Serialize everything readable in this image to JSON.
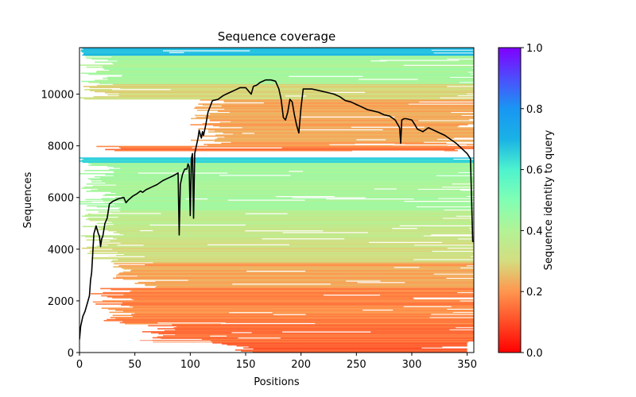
{
  "chart_data": {
    "type": "heatmap",
    "title": "Sequence coverage",
    "xlabel": "Positions",
    "ylabel": "Sequences",
    "xlim": [
      0,
      356
    ],
    "ylim": [
      0,
      11800
    ],
    "x_ticks": [
      0,
      50,
      100,
      150,
      200,
      250,
      300,
      350
    ],
    "x_tick_labels": [
      "0",
      "50",
      "100",
      "150",
      "200",
      "250",
      "300",
      "350"
    ],
    "y_ticks": [
      0,
      2000,
      4000,
      6000,
      8000,
      10000
    ],
    "y_tick_labels": [
      "0",
      "2000",
      "4000",
      "6000",
      "8000",
      "10000"
    ],
    "colorbar": {
      "label": "Sequence identity to query",
      "range": [
        0.0,
        1.0
      ],
      "ticks": [
        0.0,
        0.2,
        0.4,
        0.6,
        0.8,
        1.0
      ],
      "tick_labels": [
        "0.0",
        "0.2",
        "0.4",
        "0.6",
        "0.8",
        "1.0"
      ],
      "colormap": "rainbow_r"
    },
    "coverage_bands": [
      {
        "y_from": 0,
        "y_to": 400,
        "identity": 0.12,
        "x_start": 130,
        "x_end": 350
      },
      {
        "y_from": 400,
        "y_to": 1100,
        "identity": 0.15,
        "x_start": 60,
        "x_end": 356
      },
      {
        "y_from": 1100,
        "y_to": 2500,
        "identity": 0.18,
        "x_start": 20,
        "x_end": 356
      },
      {
        "y_from": 2500,
        "y_to": 3500,
        "identity": 0.22,
        "x_start": 40,
        "x_end": 356
      },
      {
        "y_from": 3500,
        "y_to": 4500,
        "identity": 0.31,
        "x_start": 12,
        "x_end": 356
      },
      {
        "y_from": 4500,
        "y_to": 5500,
        "identity": 0.36,
        "x_start": 10,
        "x_end": 356
      },
      {
        "y_from": 5500,
        "y_to": 7350,
        "identity": 0.42,
        "x_start": 8,
        "x_end": 356
      },
      {
        "y_from": 7350,
        "y_to": 7550,
        "identity": 0.65,
        "x_start": 0,
        "x_end": 356
      },
      {
        "y_from": 7800,
        "y_to": 8000,
        "identity": 0.16,
        "x_start": 8,
        "x_end": 356
      },
      {
        "y_from": 8000,
        "y_to": 9800,
        "identity": 0.22,
        "x_start": 110,
        "x_end": 356
      },
      {
        "y_from": 9800,
        "y_to": 10400,
        "identity": 0.3,
        "x_start": 8,
        "x_end": 356
      },
      {
        "y_from": 10400,
        "y_to": 11500,
        "identity": 0.42,
        "x_start": 10,
        "x_end": 356
      },
      {
        "y_from": 11500,
        "y_to": 11800,
        "identity": 0.7,
        "x_start": 0,
        "x_end": 356
      }
    ],
    "coverage_line": {
      "x": [
        0,
        1,
        3,
        5,
        7,
        9,
        10,
        11,
        13,
        15,
        17,
        18,
        19,
        20,
        21,
        23,
        25,
        27,
        30,
        35,
        40,
        42,
        44,
        48,
        52,
        55,
        57,
        60,
        65,
        70,
        75,
        80,
        85,
        89,
        90,
        91,
        93,
        95,
        97,
        98,
        99,
        100,
        101,
        102,
        103,
        104,
        105,
        107,
        108,
        110,
        111,
        112,
        114,
        116,
        120,
        125,
        130,
        135,
        140,
        145,
        150,
        153,
        155,
        157,
        160,
        163,
        168,
        173,
        177,
        180,
        182,
        184,
        186,
        188,
        190,
        192,
        194,
        196,
        198,
        200,
        202,
        205,
        210,
        215,
        220,
        225,
        230,
        235,
        240,
        245,
        250,
        255,
        260,
        265,
        270,
        275,
        280,
        285,
        289,
        290,
        291,
        293,
        295,
        300,
        303,
        305,
        310,
        315,
        320,
        325,
        330,
        335,
        340,
        345,
        350,
        353,
        355,
        356
      ],
      "y": [
        500,
        1000,
        1400,
        1600,
        1900,
        2200,
        2800,
        3100,
        4600,
        4900,
        4600,
        4500,
        4100,
        4400,
        4500,
        5000,
        5200,
        5750,
        5850,
        5950,
        6000,
        5800,
        5900,
        6050,
        6150,
        6250,
        6200,
        6300,
        6400,
        6500,
        6650,
        6750,
        6850,
        6950,
        4550,
        6500,
        6900,
        7100,
        7100,
        7300,
        7200,
        5300,
        7500,
        7700,
        5200,
        7700,
        7900,
        8300,
        8600,
        8300,
        8550,
        8400,
        8800,
        9300,
        9750,
        9800,
        9950,
        10050,
        10150,
        10250,
        10250,
        10100,
        10000,
        10300,
        10350,
        10450,
        10550,
        10550,
        10500,
        10200,
        9800,
        9100,
        9000,
        9300,
        9800,
        9700,
        9200,
        8800,
        8500,
        9500,
        10200,
        10200,
        10200,
        10150,
        10100,
        10050,
        10000,
        9900,
        9750,
        9700,
        9600,
        9500,
        9400,
        9350,
        9300,
        9200,
        9150,
        9000,
        8700,
        8100,
        9000,
        9050,
        9050,
        9000,
        8800,
        8650,
        8550,
        8700,
        8600,
        8500,
        8400,
        8250,
        8100,
        7900,
        7700,
        7500,
        4300,
        4300
      ]
    }
  }
}
